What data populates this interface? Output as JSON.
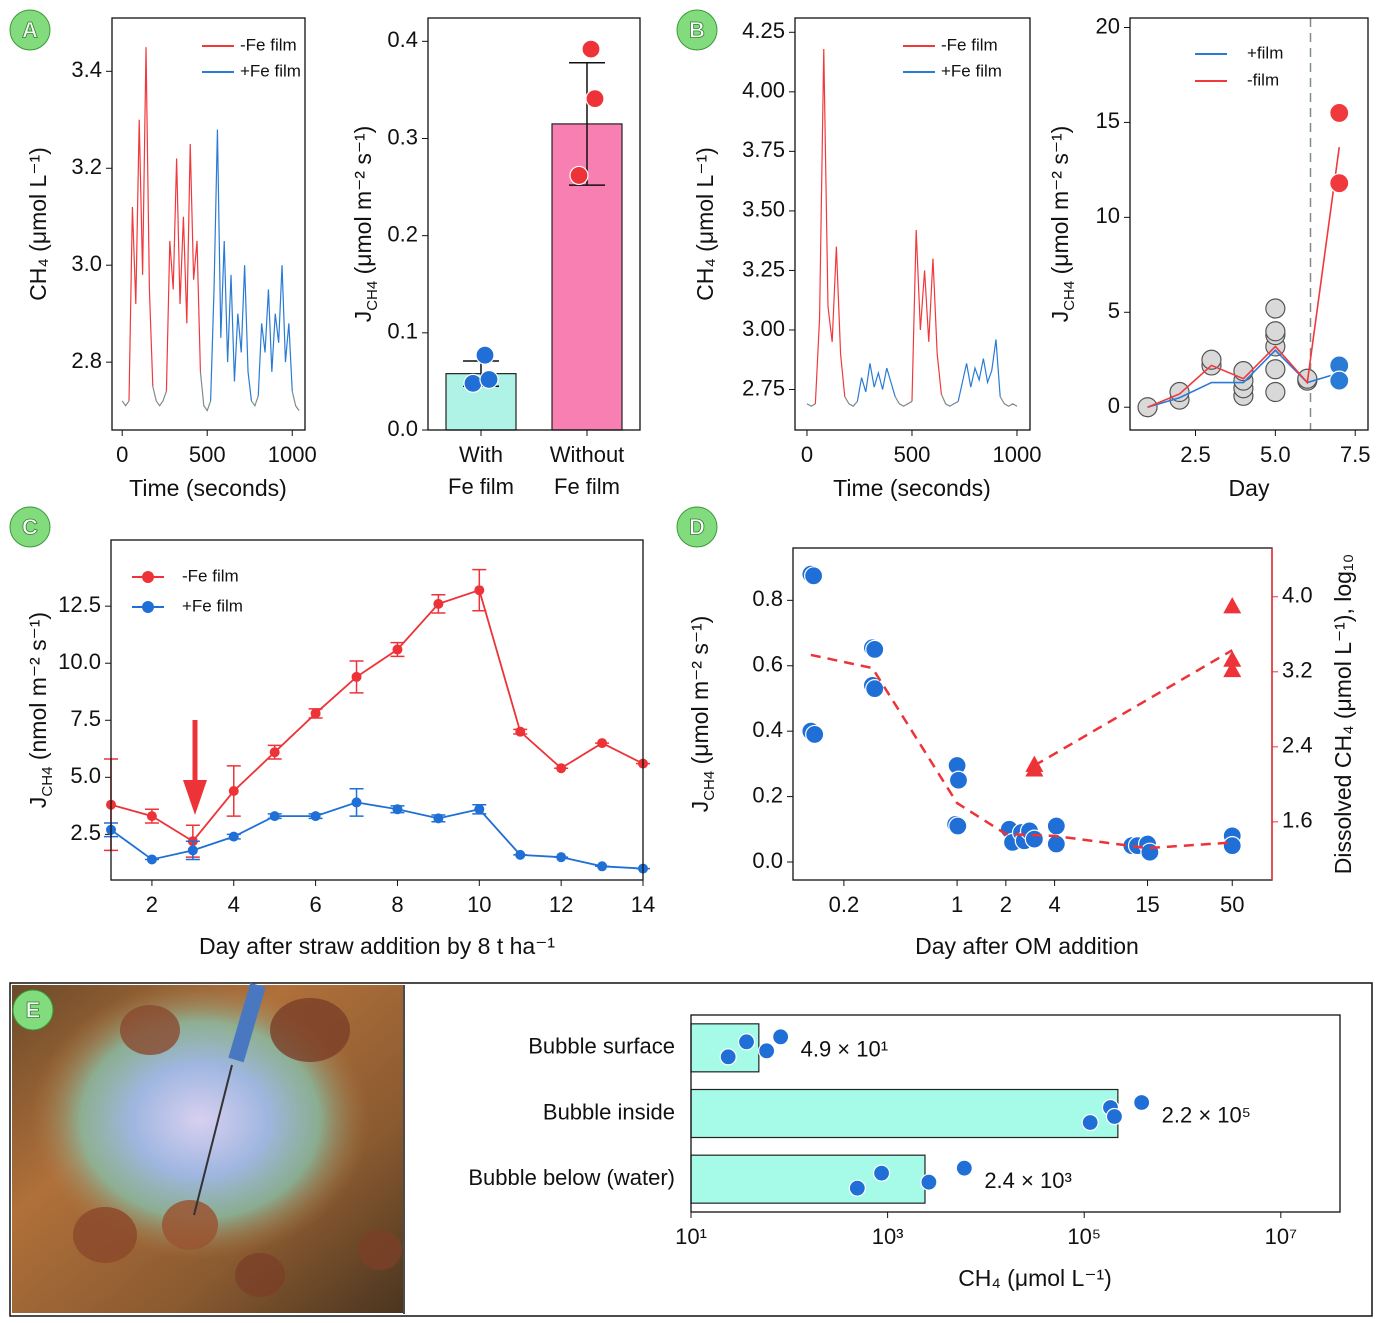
{
  "panel_labels": [
    "A",
    "B",
    "C",
    "D",
    "E"
  ],
  "chart_data": [
    {
      "type": "line",
      "xlabel": "Time (seconds)",
      "ylabel": "CH₄ (μmol L⁻¹)",
      "x": [
        0,
        20,
        40,
        60,
        80,
        100,
        120,
        140,
        160,
        180,
        200,
        220,
        240,
        260,
        280,
        300,
        320,
        340,
        360,
        380,
        400,
        420,
        440,
        460,
        480,
        500,
        520,
        540,
        560,
        580,
        600,
        620,
        640,
        660,
        680,
        700,
        720,
        740,
        760,
        780,
        800,
        820,
        840,
        860,
        880,
        900,
        920,
        940,
        960,
        980,
        1000,
        1020,
        1040
      ],
      "xlim": [
        -60,
        1075
      ],
      "ylim": [
        2.66,
        3.51
      ],
      "xticks": [
        0,
        500,
        1000
      ],
      "yticks": [
        2.8,
        {
          "value": 3,
          "label": "3.0"
        },
        3.2,
        3.4
      ],
      "series": [
        {
          "color": "#7f8c8d",
          "values": [
            2.72,
            2.71,
            2.72,
            null,
            null,
            null,
            null,
            null,
            null,
            2.75,
            2.72,
            2.71,
            2.72,
            2.74,
            null,
            null,
            null,
            null,
            null,
            null,
            null,
            null,
            null,
            2.78,
            2.71,
            2.7,
            2.72,
            null,
            null,
            null,
            null,
            null,
            null,
            null,
            null,
            null,
            null,
            null,
            2.72,
            2.71,
            2.73,
            null,
            null,
            null,
            null,
            null,
            null,
            null,
            null,
            null,
            2.74,
            2.71,
            2.7
          ]
        },
        {
          "name": "-Fe film",
          "color": "#f0393d",
          "values": [
            null,
            null,
            2.72,
            3.12,
            2.92,
            3.3,
            2.98,
            3.45,
            2.95,
            2.75,
            null,
            null,
            null,
            2.74,
            3.05,
            2.95,
            3.22,
            2.92,
            3.1,
            2.88,
            3.25,
            2.97,
            3.05,
            2.78,
            null,
            null,
            null,
            null,
            null,
            null,
            null,
            null,
            null,
            null,
            null,
            null,
            null,
            null,
            null,
            null,
            null,
            null,
            null,
            null,
            null,
            null,
            null,
            null,
            null,
            null,
            null,
            null,
            null
          ]
        },
        {
          "name": "+Fe film",
          "color": "#2a7bd5",
          "values": [
            null,
            null,
            null,
            null,
            null,
            null,
            null,
            null,
            null,
            null,
            null,
            null,
            null,
            null,
            null,
            null,
            null,
            null,
            null,
            null,
            null,
            null,
            null,
            null,
            null,
            null,
            2.72,
            2.95,
            3.28,
            2.85,
            3.05,
            2.8,
            2.98,
            2.76,
            2.9,
            2.82,
            3.0,
            2.78,
            2.72,
            null,
            2.73,
            2.88,
            2.82,
            2.95,
            2.78,
            2.9,
            2.84,
            3.0,
            2.8,
            2.88,
            2.74,
            null,
            null
          ]
        }
      ]
    },
    {
      "type": "bar",
      "ylabel": [
        "J",
        "CH4",
        " (μmol m⁻² s⁻¹)"
      ],
      "categories": [
        [
          "With",
          "Fe film"
        ],
        [
          "Without",
          "Fe film"
        ]
      ],
      "values": [
        0.058,
        0.315
      ],
      "errors": [
        0.013,
        0.063
      ],
      "colors": [
        "#aef3e6",
        "#f77fb2"
      ],
      "points": [
        [
          0.048,
          0.052,
          0.077
        ],
        [
          0.262,
          0.341,
          0.392
        ]
      ],
      "point_colors": [
        "#1f6fd6",
        "#ee3338"
      ],
      "ylim": [
        0,
        0.424
      ],
      "yticks": [
        {
          "value": 0,
          "label": "0.0"
        },
        0.1,
        0.2,
        0.3,
        0.4
      ]
    },
    {
      "type": "line",
      "xlabel": "Time (seconds)",
      "ylabel": "CH₄ (μmol L⁻¹)",
      "x": [
        0,
        20,
        40,
        60,
        80,
        100,
        120,
        140,
        160,
        180,
        200,
        220,
        240,
        260,
        280,
        300,
        320,
        340,
        360,
        380,
        400,
        420,
        440,
        460,
        480,
        500,
        520,
        540,
        560,
        580,
        600,
        620,
        640,
        660,
        680,
        700,
        720,
        740,
        760,
        780,
        800,
        820,
        840,
        860,
        880,
        900,
        920,
        940,
        960,
        980,
        1000
      ],
      "xlim": [
        -57,
        1062
      ],
      "ylim": [
        2.58,
        4.31
      ],
      "xticks": [
        0,
        500,
        1000
      ],
      "yticks": [
        2.75,
        {
          "value": 3,
          "label": "3.00"
        },
        3.25,
        {
          "value": 3.5,
          "label": "3.50"
        },
        3.75,
        {
          "value": 4,
          "label": "4.00"
        },
        4.25
      ],
      "series": [
        {
          "color": "#7f8c8d",
          "values": [
            2.69,
            2.68,
            2.69,
            null,
            null,
            null,
            null,
            null,
            null,
            2.72,
            2.69,
            2.68,
            2.7,
            null,
            null,
            null,
            null,
            null,
            null,
            null,
            null,
            2.72,
            2.69,
            2.68,
            2.69,
            2.7,
            null,
            null,
            null,
            null,
            null,
            null,
            2.73,
            2.69,
            2.68,
            2.69,
            2.7,
            null,
            null,
            null,
            null,
            null,
            null,
            null,
            null,
            null,
            2.72,
            2.69,
            2.68,
            2.69,
            2.68
          ]
        },
        {
          "name": "-Fe film",
          "color": "#f0393d",
          "values": [
            null,
            null,
            2.69,
            3.05,
            4.18,
            3.1,
            2.95,
            3.35,
            2.9,
            2.72,
            null,
            null,
            null,
            null,
            null,
            null,
            null,
            null,
            null,
            null,
            null,
            null,
            null,
            null,
            null,
            2.7,
            3.42,
            3.0,
            3.25,
            2.95,
            3.3,
            2.9,
            2.73,
            null,
            null,
            null,
            null,
            null,
            null,
            null,
            null,
            null,
            null,
            null,
            null,
            null,
            null,
            null,
            null,
            null,
            null
          ]
        },
        {
          "name": "+Fe film",
          "color": "#2a7bd5",
          "values": [
            null,
            null,
            null,
            null,
            null,
            null,
            null,
            null,
            null,
            null,
            null,
            null,
            2.7,
            2.8,
            2.74,
            2.86,
            2.76,
            2.82,
            2.75,
            2.84,
            2.78,
            2.72,
            null,
            null,
            null,
            null,
            null,
            null,
            null,
            null,
            null,
            null,
            null,
            null,
            null,
            null,
            2.7,
            2.78,
            2.86,
            2.76,
            2.84,
            2.79,
            2.88,
            2.78,
            2.83,
            2.96,
            2.72,
            null,
            null,
            null,
            null
          ]
        }
      ]
    },
    {
      "type": "line",
      "xlabel": "Day",
      "ylabel": [
        "J",
        "CH4",
        " (μmol m⁻² s⁻¹)"
      ],
      "xlim": [
        0.45,
        7.9
      ],
      "ylim": [
        -1.2,
        20.5
      ],
      "xticks": [
        2.5,
        {
          "value": 5,
          "label": "5.0"
        },
        7.5
      ],
      "yticks": [
        0,
        5,
        10,
        15,
        20
      ],
      "vline": 6.1,
      "series": [
        {
          "mode": "markers",
          "color": "#d9d9d9",
          "edge": "#555555",
          "x": [
            1,
            2,
            2,
            3,
            3,
            4,
            4,
            4,
            4,
            5,
            5,
            5,
            5,
            5,
            5,
            6,
            6
          ],
          "values": [
            0,
            0.4,
            0.8,
            2.2,
            2.5,
            0.6,
            1.0,
            1.4,
            1.9,
            0.8,
            2.0,
            3.2,
            3.8,
            4.0,
            5.2,
            1.4,
            1.5
          ]
        },
        {
          "name": "+film",
          "mode": "line",
          "color": "#2a7bd5",
          "x": [
            1,
            2,
            3,
            4,
            5,
            6,
            7
          ],
          "values": [
            0,
            0.5,
            1.3,
            1.3,
            3.0,
            1.3,
            1.8
          ]
        },
        {
          "name": "-film",
          "mode": "line",
          "color": "#f0393d",
          "x": [
            1,
            2,
            3,
            4,
            5,
            6,
            7
          ],
          "values": [
            0,
            0.7,
            2.2,
            1.5,
            3.2,
            1.3,
            13.7
          ]
        },
        {
          "mode": "markers",
          "color": "#f0393d",
          "edge": "#ffffff",
          "x": [
            7,
            7
          ],
          "values": [
            15.5,
            11.8
          ]
        },
        {
          "mode": "markers",
          "color": "#2a7bd5",
          "edge": "#ffffff",
          "x": [
            7,
            7
          ],
          "values": [
            2.2,
            1.4
          ]
        }
      ]
    },
    {
      "type": "line",
      "xlabel": "Day after straw addition by 8 t ha⁻¹",
      "ylabel": [
        "J",
        "CH4",
        " (nmol m⁻² s⁻¹)"
      ],
      "x": [
        1,
        2,
        3,
        4,
        5,
        6,
        7,
        8,
        9,
        10,
        11,
        12,
        13,
        14
      ],
      "xlim": [
        1,
        14
      ],
      "ylim": [
        0.5,
        15.4
      ],
      "xticks": [
        2,
        4,
        6,
        8,
        10,
        12,
        14
      ],
      "yticks": [
        2.5,
        {
          "value": 5,
          "label": "5.0"
        },
        7.5,
        {
          "value": 10,
          "label": "10.0"
        },
        12.5
      ],
      "series": [
        {
          "name": "-Fe film",
          "mode": "line+markers",
          "color": "#ee3338",
          "values": [
            3.8,
            3.3,
            2.2,
            4.4,
            6.1,
            7.8,
            9.4,
            10.6,
            12.6,
            13.2,
            7.0,
            5.4,
            6.5,
            5.6
          ],
          "errors": [
            2.0,
            0.3,
            0.7,
            1.1,
            0.3,
            0.2,
            0.7,
            0.3,
            0.4,
            0.9,
            0.1,
            0,
            0,
            0
          ]
        },
        {
          "name": "+Fe film",
          "mode": "line+markers",
          "color": "#1f6fd6",
          "values": [
            2.7,
            1.4,
            1.8,
            2.4,
            3.3,
            3.3,
            3.9,
            3.6,
            3.2,
            3.6,
            1.6,
            1.5,
            1.1,
            1.0
          ],
          "errors": [
            0.3,
            0,
            0.4,
            0.1,
            0.1,
            0.1,
            0.6,
            0.15,
            0.15,
            0.2,
            0,
            0,
            0,
            0
          ]
        }
      ]
    },
    {
      "type": "line",
      "xlabel": "Day after OM addition",
      "ylabel": [
        "J",
        "CH4",
        " (μmol m⁻² s⁻¹)"
      ],
      "y2label": "Dissolved CH₄ (μmol L⁻¹), log₁₀",
      "xlog": true,
      "xlim": [
        0.097,
        88
      ],
      "ylim": [
        -0.055,
        0.96
      ],
      "y2lim": [
        0.98,
        4.52
      ],
      "y2color": "#ee3338",
      "xticks": [
        0.2,
        1,
        2,
        4,
        15,
        50
      ],
      "yticks": [
        {
          "value": 0,
          "label": "0.0"
        },
        0.2,
        0.4,
        0.6,
        0.8
      ],
      "y2ticks": [
        1.6,
        2.4,
        3.2,
        {
          "value": 4,
          "label": "4.0"
        }
      ],
      "series": [
        {
          "mode": "markers",
          "color": "#1f6fd6",
          "edge": "#ffffff",
          "x": [
            0.125,
            0.13,
            0.125,
            0.132,
            0.3,
            0.31,
            0.3,
            0.31,
            1.0,
            1.02,
            0.98,
            1.01,
            2.1,
            2.2,
            2.5,
            2.6,
            2.8,
            3.0,
            4.1,
            4.1,
            12,
            13,
            15,
            15.5,
            50,
            50
          ],
          "values": [
            0.88,
            0.875,
            0.4,
            0.39,
            0.655,
            0.65,
            0.54,
            0.53,
            0.295,
            0.25,
            0.115,
            0.11,
            0.1,
            0.06,
            0.09,
            0.065,
            0.095,
            0.07,
            0.11,
            0.055,
            0.05,
            0.05,
            0.055,
            0.03,
            0.08,
            0.05
          ]
        },
        {
          "mode": "line",
          "style": "dashed",
          "axis": "y2",
          "color": "#ee3338",
          "x": [
            0.125,
            0.3,
            1,
            2,
            4,
            15,
            50
          ],
          "values": [
            3.38,
            3.24,
            1.8,
            1.47,
            1.45,
            1.32,
            1.38
          ]
        },
        {
          "mode": "line",
          "style": "dashed",
          "axis": "y2",
          "color": "#ee3338",
          "x": [
            3,
            50
          ],
          "values": [
            2.2,
            3.43
          ]
        },
        {
          "mode": "markers",
          "marker": "triangle",
          "axis": "y2",
          "color": "#ee3338",
          "x": [
            3,
            3,
            50,
            50,
            50
          ],
          "values": [
            2.21,
            2.16,
            3.9,
            3.33,
            3.22
          ]
        }
      ]
    },
    {
      "type": "barh",
      "xlabel": "CH₄ (μmol L⁻¹)",
      "categories": [
        "Bubble surface",
        "Bubble inside",
        "Bubble below (water)"
      ],
      "values": [
        49,
        220000,
        2400
      ],
      "value_labels": [
        "4.9 × 10¹",
        "2.2 × 10⁵",
        "2.4 × 10³"
      ],
      "points": [
        [
          23.9,
          36.7,
          58.8,
          81.6
        ],
        [
          115000,
          185000,
          203000,
          384000
        ],
        [
          492,
          868,
          2630,
          6030
        ]
      ],
      "color": "#a6fbe8",
      "point_color": "#1f6fd6",
      "xlog": true,
      "xlim": [
        10,
        40000000
      ],
      "xticks": [
        {
          "value": 10,
          "label": "10¹"
        },
        {
          "value": 1000,
          "label": "10³"
        },
        {
          "value": 100000,
          "label": "10⁵"
        },
        {
          "value": 10000000,
          "label": "10⁷"
        }
      ]
    }
  ]
}
